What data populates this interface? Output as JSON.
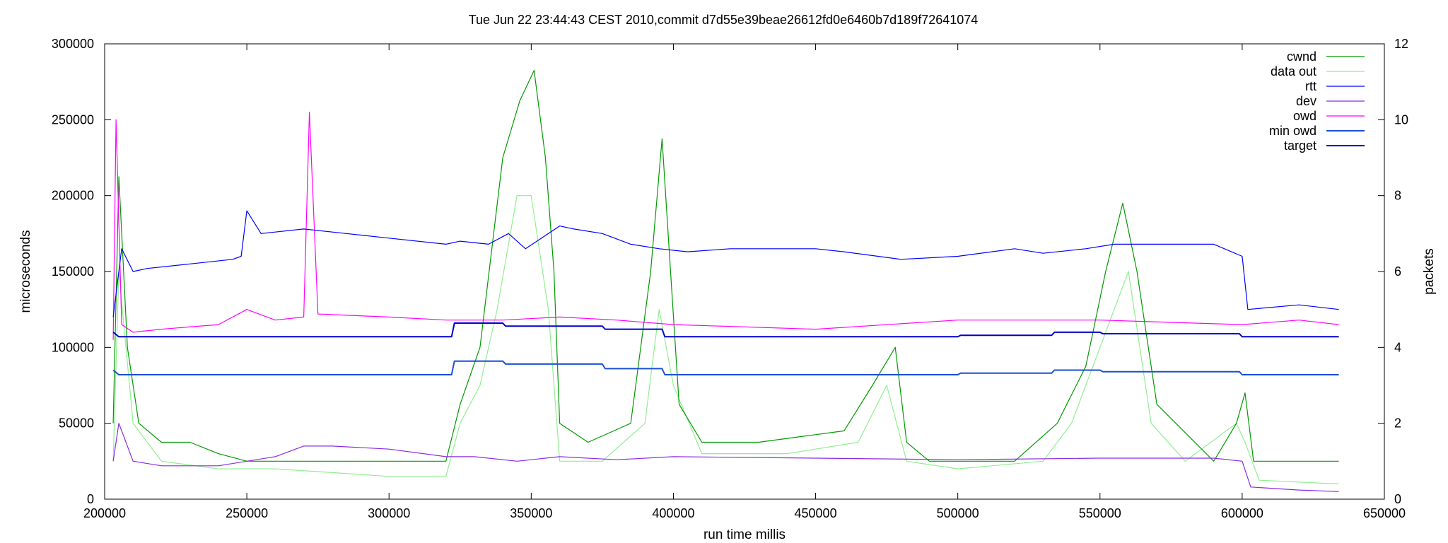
{
  "chart_data": {
    "type": "line",
    "title": "Tue Jun 22 23:44:43 CEST 2010,commit d7d55e39beae26612fd0e6460b7d189f72641074",
    "xlabel": "run time millis",
    "ylabel": "microseconds",
    "y2label": "packets",
    "xlim": [
      200000,
      650000
    ],
    "ylim": [
      0,
      300000
    ],
    "y2lim": [
      0,
      12
    ],
    "xticks": [
      "200000",
      "250000",
      "300000",
      "350000",
      "400000",
      "450000",
      "500000",
      "550000",
      "600000",
      "650000"
    ],
    "yticks": [
      "0",
      "50000",
      "100000",
      "150000",
      "200000",
      "250000",
      "300000"
    ],
    "y2ticks": [
      "0",
      "2",
      "4",
      "6",
      "8",
      "10",
      "12"
    ],
    "grid": false,
    "legend_position": "top-right",
    "series": [
      {
        "name": "cwnd",
        "axis": "y2",
        "color": "#009900",
        "x": [
          203000,
          205000,
          208000,
          212000,
          220000,
          230000,
          240000,
          250000,
          260000,
          280000,
          300000,
          320000,
          325000,
          332000,
          340000,
          346000,
          351000,
          355000,
          358000,
          360000,
          370000,
          385000,
          392000,
          396000,
          399000,
          402000,
          410000,
          430000,
          460000,
          470000,
          478000,
          482000,
          490000,
          520000,
          535000,
          545000,
          552000,
          558000,
          563000,
          570000,
          590000,
          598000,
          601000,
          604000,
          620000,
          634000
        ],
        "y": [
          2,
          8.5,
          4,
          2,
          1.5,
          1.5,
          1.2,
          1,
          1,
          1,
          1,
          1,
          2.5,
          4,
          9,
          10.5,
          11.3,
          9,
          6,
          2,
          1.5,
          2,
          6,
          9.5,
          6,
          2.5,
          1.5,
          1.5,
          1.8,
          3,
          4,
          1.5,
          1,
          1,
          2,
          3.5,
          6,
          7.8,
          6,
          2.5,
          1,
          2,
          2.8,
          1,
          1,
          1
        ]
      },
      {
        "name": "data out",
        "axis": "y2",
        "color": "#90ee90",
        "x": [
          203000,
          205000,
          210000,
          220000,
          240000,
          260000,
          280000,
          300000,
          320000,
          325000,
          332000,
          338000,
          345000,
          350000,
          356000,
          360000,
          375000,
          390000,
          395000,
          400000,
          410000,
          440000,
          465000,
          475000,
          482000,
          500000,
          530000,
          540000,
          550000,
          560000,
          568000,
          580000,
          598000,
          601000,
          606000,
          634000
        ],
        "y": [
          1,
          6,
          2,
          1,
          0.8,
          0.8,
          0.7,
          0.6,
          0.6,
          2,
          3,
          5,
          8,
          8,
          5,
          1,
          1,
          2,
          5,
          3,
          1.2,
          1.2,
          1.5,
          3,
          1,
          0.8,
          1,
          2,
          4,
          6,
          2,
          1,
          2,
          1.5,
          0.5,
          0.4
        ]
      },
      {
        "name": "rtt",
        "axis": "y1",
        "color": "#0000ff",
        "x": [
          203000,
          206000,
          210000,
          215000,
          230000,
          245000,
          248000,
          250000,
          255000,
          260000,
          270000,
          285000,
          300000,
          320000,
          325000,
          335000,
          342000,
          348000,
          352000,
          360000,
          365000,
          375000,
          385000,
          395000,
          405000,
          420000,
          450000,
          460000,
          480000,
          500000,
          520000,
          530000,
          545000,
          555000,
          570000,
          590000,
          600000,
          602000,
          620000,
          634000
        ],
        "y": [
          120000,
          165000,
          150000,
          152000,
          155000,
          158000,
          160000,
          190000,
          175000,
          176000,
          178000,
          175000,
          172000,
          168000,
          170000,
          168000,
          175000,
          165000,
          170000,
          180000,
          178000,
          175000,
          168000,
          165000,
          163000,
          165000,
          165000,
          163000,
          158000,
          160000,
          165000,
          162000,
          165000,
          168000,
          168000,
          168000,
          160000,
          125000,
          128000,
          125000
        ]
      },
      {
        "name": "dev",
        "axis": "y1",
        "color": "#8a2be2",
        "x": [
          203000,
          205000,
          210000,
          220000,
          240000,
          250000,
          260000,
          270000,
          280000,
          300000,
          320000,
          330000,
          345000,
          360000,
          380000,
          400000,
          450000,
          500000,
          550000,
          590000,
          600000,
          603000,
          620000,
          634000
        ],
        "y": [
          25000,
          50000,
          25000,
          22000,
          22000,
          25000,
          28000,
          35000,
          35000,
          33000,
          28000,
          28000,
          25000,
          28000,
          26000,
          28000,
          27000,
          26000,
          27000,
          27000,
          25000,
          8000,
          6000,
          5000
        ]
      },
      {
        "name": "owd",
        "axis": "y1",
        "color": "#ff00ff",
        "x": [
          203000,
          204000,
          206000,
          210000,
          220000,
          240000,
          250000,
          260000,
          270000,
          272000,
          275000,
          300000,
          320000,
          340000,
          360000,
          380000,
          400000,
          450000,
          500000,
          550000,
          600000,
          620000,
          634000
        ],
        "y": [
          105000,
          250000,
          115000,
          110000,
          112000,
          115000,
          125000,
          118000,
          120000,
          255000,
          122000,
          120000,
          118000,
          118000,
          120000,
          118000,
          115000,
          112000,
          118000,
          118000,
          115000,
          118000,
          115000
        ]
      },
      {
        "name": "min owd",
        "axis": "y1",
        "color": "#1a4fd6",
        "x": [
          203000,
          205000,
          322000,
          323000,
          340000,
          341000,
          375000,
          376000,
          396000,
          397000,
          500000,
          501000,
          533000,
          534000,
          550000,
          551000,
          599000,
          600000,
          634000
        ],
        "y": [
          85000,
          82000,
          82000,
          91000,
          91000,
          89000,
          89000,
          86000,
          86000,
          82000,
          82000,
          83000,
          83000,
          85000,
          85000,
          84000,
          84000,
          82000,
          82000
        ]
      },
      {
        "name": "target",
        "axis": "y1",
        "color": "#0000cc",
        "x": [
          203000,
          205000,
          322000,
          323000,
          340000,
          341000,
          375000,
          376000,
          396000,
          397000,
          500000,
          501000,
          533000,
          534000,
          550000,
          551000,
          599000,
          600000,
          634000
        ],
        "y": [
          110000,
          107000,
          107000,
          116000,
          116000,
          114000,
          114000,
          112000,
          112000,
          107000,
          107000,
          108000,
          108000,
          110000,
          110000,
          109000,
          109000,
          107000,
          107000
        ]
      }
    ]
  }
}
